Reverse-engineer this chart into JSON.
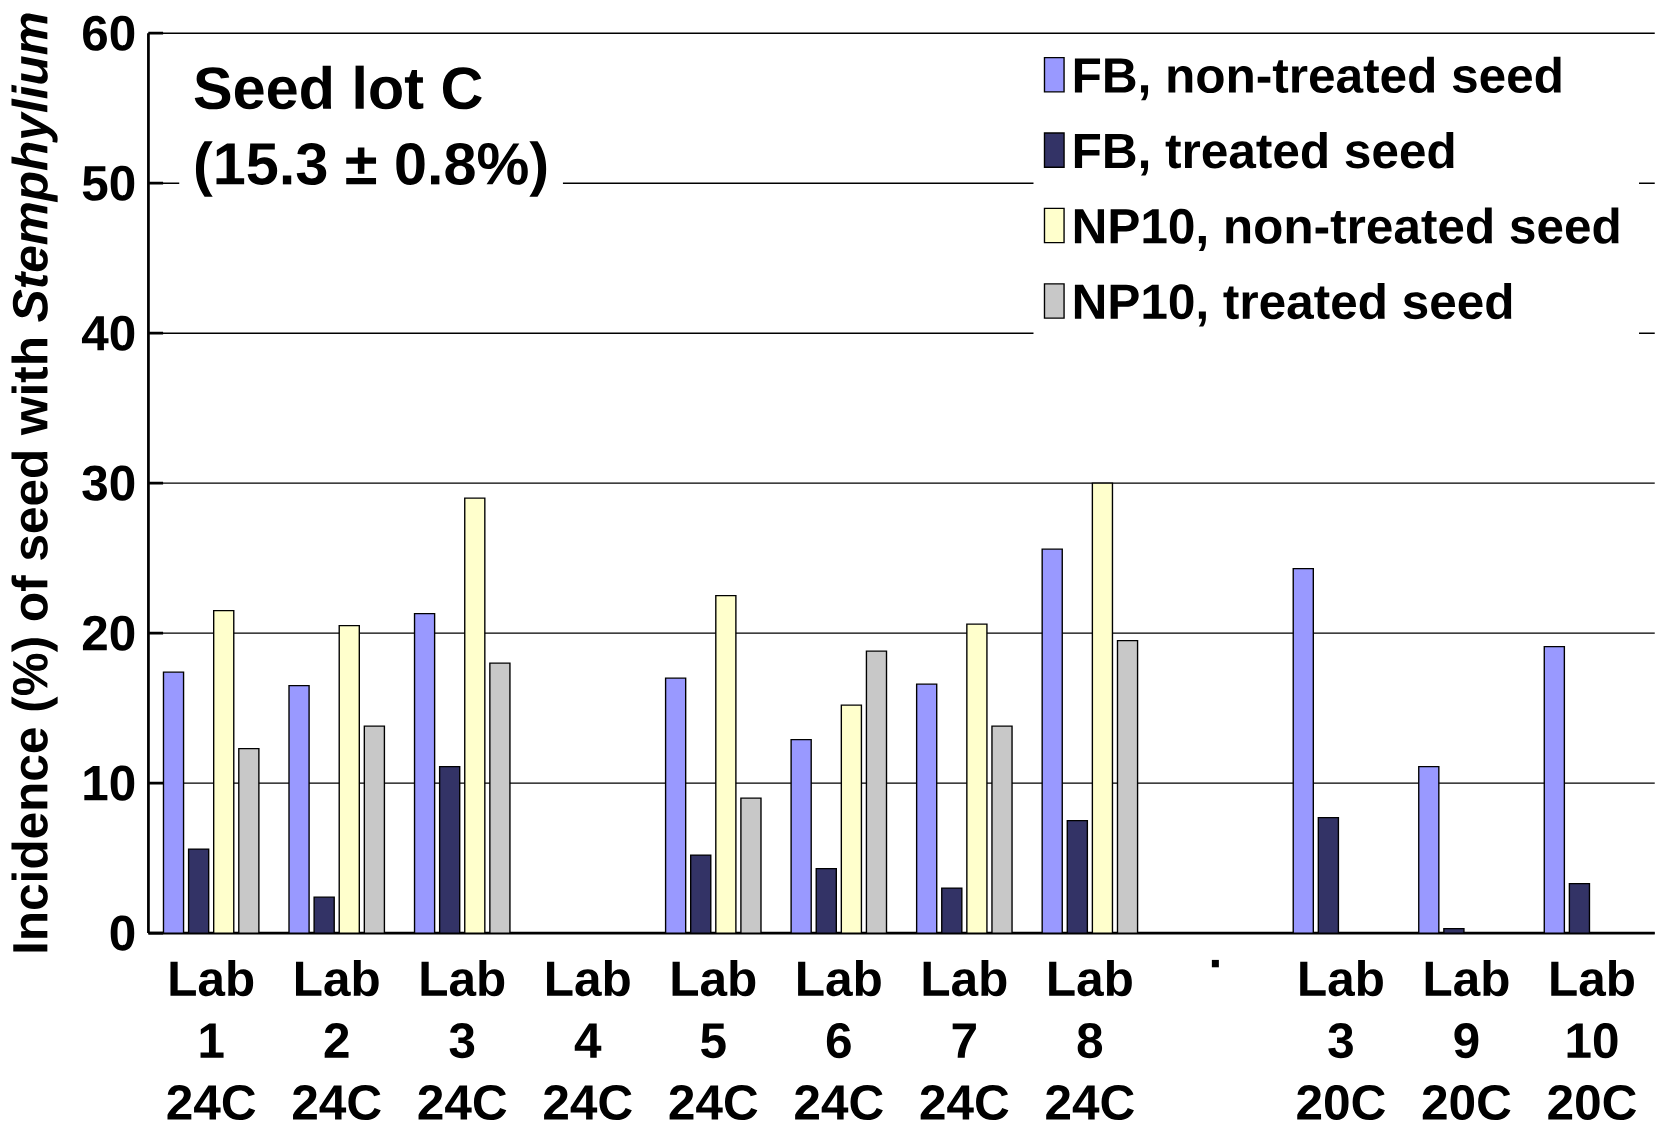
{
  "chart_data": {
    "type": "bar",
    "title": "Seed lot C",
    "subtitle": "(15.3 ± 0.8%)",
    "ylabel": "Incidence (%) of seed with *Stemphylium*",
    "categories": [
      "Lab 1 24C",
      "Lab 2 24C",
      "Lab 3 24C",
      "Lab 4 24C",
      "Lab 5 24C",
      "Lab 6 24C",
      "Lab 7 24C",
      "Lab 8 24C",
      ".",
      "Lab 3 20C",
      "Lab 9 20C",
      "Lab 10 20C"
    ],
    "series": [
      {
        "name": "FB, non-treated seed",
        "color": "#9999ff",
        "values": [
          17.4,
          16.5,
          21.3,
          null,
          17.0,
          12.9,
          16.6,
          25.6,
          null,
          24.3,
          11.1,
          19.1
        ]
      },
      {
        "name": "FB, treated seed",
        "color": "#333366",
        "values": [
          5.6,
          2.4,
          11.1,
          null,
          5.2,
          4.3,
          3.0,
          7.5,
          null,
          7.7,
          0.3,
          3.3
        ]
      },
      {
        "name": "NP10, non-treated seed",
        "color": "#ffffcc",
        "values": [
          21.5,
          20.5,
          29.0,
          null,
          22.5,
          15.2,
          20.6,
          30.0,
          null,
          null,
          null,
          null
        ]
      },
      {
        "name": "NP10, treated seed",
        "color": "#c8c8c8",
        "values": [
          12.3,
          13.8,
          18.0,
          null,
          9.0,
          18.8,
          13.8,
          19.5,
          null,
          null,
          null,
          null
        ]
      }
    ],
    "ylim": [
      0,
      60
    ],
    "yticks": [
      0,
      10,
      20,
      30,
      40,
      50,
      60
    ],
    "grid": "y",
    "legend": "top right"
  }
}
